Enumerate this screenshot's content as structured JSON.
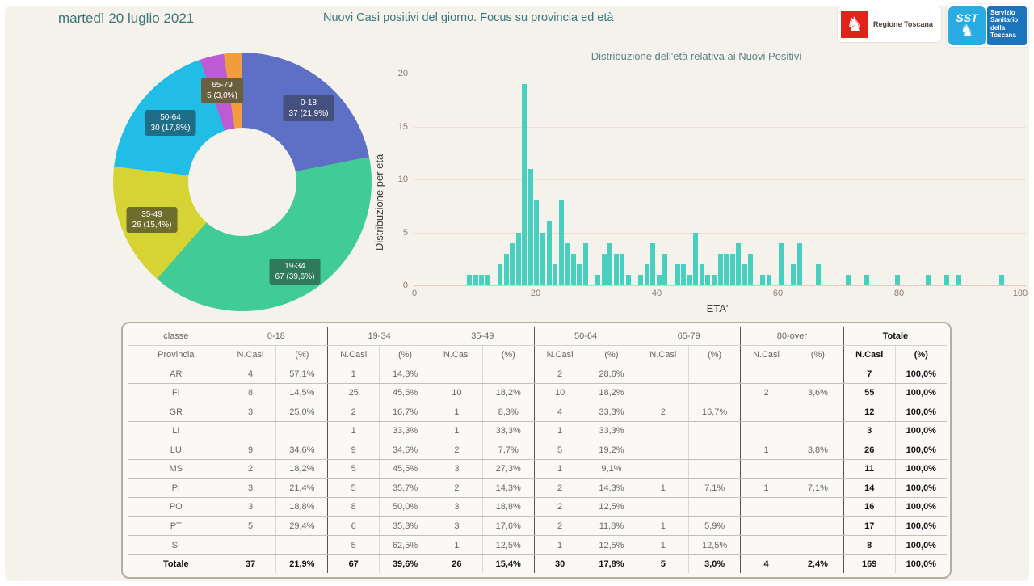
{
  "header": {
    "date": "martedì 20 luglio 2021",
    "title": "Nuovi Casi positivi del giorno. Focus su provincia ed età",
    "logo_regione": {
      "label": "Regione Toscana",
      "horse_icon": "white-pegasus-on-red"
    },
    "logo_sst": {
      "abbr": "SST",
      "label_lines": [
        "Servizio",
        "Sanitario",
        "della",
        "Toscana"
      ],
      "horse_icon": "white-pegasus-on-lightblue"
    }
  },
  "colors": {
    "panel_bg": "#f5f2eb",
    "bar": "#48cfc0",
    "gridline": "#f1ddd5",
    "teal_text": "#3d7478",
    "donut_segments": [
      "#5d70c5",
      "#41cb97",
      "#d6d334",
      "#22bde6",
      "#bc5bd3",
      "#f19d3b"
    ],
    "donut_label_bg": [
      "#44507e",
      "#2e7a5b",
      "#6f6d2c",
      "#1e6e87",
      "#6b5f41"
    ]
  },
  "chart_data": [
    {
      "type": "pie",
      "title": "Nuovi casi per classe di età (donut)",
      "labels": [
        "0-18",
        "19-34",
        "35-49",
        "50-64",
        "65-79",
        "80-over"
      ],
      "values": [
        37,
        67,
        26,
        30,
        5,
        4
      ],
      "percents": [
        21.9,
        39.6,
        15.4,
        17.8,
        3.0,
        2.4
      ],
      "displayed_labels": [
        {
          "line1": "0-18",
          "line2": "37 (21,9%)"
        },
        {
          "line1": "19-34",
          "line2": "67 (39,6%)"
        },
        {
          "line1": "35-49",
          "line2": "26 (15,4%)"
        },
        {
          "line1": "50-64",
          "line2": "30 (17,8%)"
        },
        {
          "line1": "65-79",
          "line2": "5 (3,0%)"
        }
      ],
      "hole_ratio": 0.42,
      "start_angle_deg": 0
    },
    {
      "type": "bar",
      "title": "Distribuzione dell'età relativa ai Nuovi Positivi",
      "xlabel": "ETA'",
      "ylabel": "Distribuzione per età",
      "xlim": [
        0,
        100
      ],
      "ylim": [
        0,
        20
      ],
      "xticks": [
        0,
        20,
        40,
        60,
        80,
        100
      ],
      "yticks": [
        0,
        5,
        10,
        15,
        20
      ],
      "grid": "horizontal",
      "ages": [
        9,
        10,
        11,
        12,
        14,
        15,
        16,
        17,
        18,
        19,
        20,
        21,
        22,
        23,
        24,
        25,
        26,
        27,
        28,
        30,
        31,
        32,
        33,
        34,
        35,
        37,
        38,
        39,
        40,
        41,
        43,
        44,
        45,
        46,
        47,
        48,
        49,
        50,
        51,
        52,
        53,
        54,
        55,
        57,
        58,
        60,
        62,
        63,
        66,
        71,
        74,
        79,
        84,
        87,
        89,
        96
      ],
      "counts": [
        1,
        1,
        1,
        1,
        2,
        3,
        4,
        5,
        19,
        11,
        8,
        5,
        6,
        2,
        8,
        4,
        3,
        2,
        4,
        1,
        3,
        4,
        3,
        3,
        1,
        1,
        2,
        4,
        1,
        3,
        2,
        2,
        1,
        5,
        2,
        1,
        1,
        3,
        3,
        3,
        4,
        2,
        3,
        1,
        1,
        4,
        2,
        4,
        2,
        1,
        1,
        1,
        1,
        1,
        1,
        1
      ]
    }
  ],
  "table": {
    "class_header": "classe",
    "province_header": "Provincia",
    "groups": [
      "0-18",
      "19-34",
      "35-49",
      "50-64",
      "65-79",
      "80-over",
      "Totale"
    ],
    "sub_headers": [
      "N.Casi",
      "(%)"
    ],
    "rows": [
      {
        "provincia": "AR",
        "cells": [
          "4",
          "57,1%",
          "1",
          "14,3%",
          "",
          "",
          "2",
          "28,6%",
          "",
          "",
          "",
          "",
          "7",
          "100,0%"
        ]
      },
      {
        "provincia": "FI",
        "cells": [
          "8",
          "14,5%",
          "25",
          "45,5%",
          "10",
          "18,2%",
          "10",
          "18,2%",
          "",
          "",
          "2",
          "3,6%",
          "55",
          "100,0%"
        ]
      },
      {
        "provincia": "GR",
        "cells": [
          "3",
          "25,0%",
          "2",
          "16,7%",
          "1",
          "8,3%",
          "4",
          "33,3%",
          "2",
          "16,7%",
          "",
          "",
          "12",
          "100,0%"
        ]
      },
      {
        "provincia": "LI",
        "cells": [
          "",
          "",
          "1",
          "33,3%",
          "1",
          "33,3%",
          "1",
          "33,3%",
          "",
          "",
          "",
          "",
          "3",
          "100,0%"
        ]
      },
      {
        "provincia": "LU",
        "cells": [
          "9",
          "34,6%",
          "9",
          "34,6%",
          "2",
          "7,7%",
          "5",
          "19,2%",
          "",
          "",
          "1",
          "3,8%",
          "26",
          "100,0%"
        ]
      },
      {
        "provincia": "MS",
        "cells": [
          "2",
          "18,2%",
          "5",
          "45,5%",
          "3",
          "27,3%",
          "1",
          "9,1%",
          "",
          "",
          "",
          "",
          "11",
          "100,0%"
        ]
      },
      {
        "provincia": "PI",
        "cells": [
          "3",
          "21,4%",
          "5",
          "35,7%",
          "2",
          "14,3%",
          "2",
          "14,3%",
          "1",
          "7,1%",
          "1",
          "7,1%",
          "14",
          "100,0%"
        ]
      },
      {
        "provincia": "PO",
        "cells": [
          "3",
          "18,8%",
          "8",
          "50,0%",
          "3",
          "18,8%",
          "2",
          "12,5%",
          "",
          "",
          "",
          "",
          "16",
          "100,0%"
        ]
      },
      {
        "provincia": "PT",
        "cells": [
          "5",
          "29,4%",
          "6",
          "35,3%",
          "3",
          "17,6%",
          "2",
          "11,8%",
          "1",
          "5,9%",
          "",
          "",
          "17",
          "100,0%"
        ]
      },
      {
        "provincia": "SI",
        "cells": [
          "",
          "",
          "5",
          "62,5%",
          "1",
          "12,5%",
          "1",
          "12,5%",
          "1",
          "12,5%",
          "",
          "",
          "8",
          "100,0%"
        ]
      },
      {
        "provincia": "Totale",
        "cells": [
          "37",
          "21,9%",
          "67",
          "39,6%",
          "26",
          "15,4%",
          "30",
          "17,8%",
          "5",
          "3,0%",
          "4",
          "2,4%",
          "169",
          "100,0%"
        ],
        "total": true
      }
    ]
  }
}
